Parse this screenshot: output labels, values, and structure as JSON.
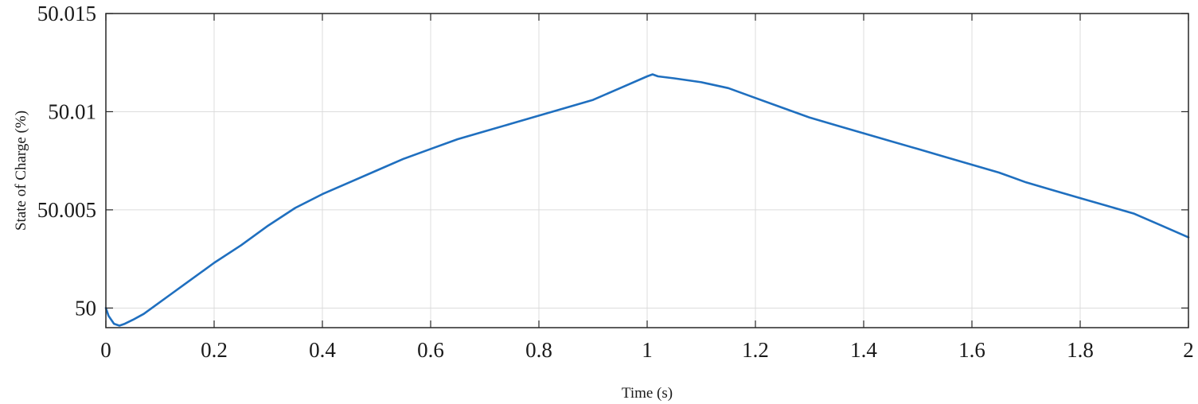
{
  "chart_data": {
    "type": "line",
    "title": "",
    "xlabel": "Time (s)",
    "ylabel": "State of Charge (%)",
    "xlim": [
      0,
      2
    ],
    "ylim": [
      49.999,
      50.015
    ],
    "grid": true,
    "x_ticks": [
      {
        "value": 0,
        "label": "0"
      },
      {
        "value": 0.2,
        "label": "0.2"
      },
      {
        "value": 0.4,
        "label": "0.4"
      },
      {
        "value": 0.6,
        "label": "0.6"
      },
      {
        "value": 0.8,
        "label": "0.8"
      },
      {
        "value": 1.0,
        "label": "1"
      },
      {
        "value": 1.2,
        "label": "1.2"
      },
      {
        "value": 1.4,
        "label": "1.4"
      },
      {
        "value": 1.6,
        "label": "1.6"
      },
      {
        "value": 1.8,
        "label": "1.8"
      },
      {
        "value": 2.0,
        "label": "2"
      }
    ],
    "y_ticks": [
      {
        "value": 50,
        "label": "50"
      },
      {
        "value": 50.005,
        "label": "50.005"
      },
      {
        "value": 50.01,
        "label": "50.01"
      },
      {
        "value": 50.015,
        "label": "50.015"
      }
    ],
    "line_color": "#1f6fbf",
    "series": [
      {
        "points": [
          [
            0.0,
            50.0
          ],
          [
            0.005,
            49.9996
          ],
          [
            0.015,
            49.9992
          ],
          [
            0.025,
            49.9991
          ],
          [
            0.035,
            49.9992
          ],
          [
            0.05,
            49.9994
          ],
          [
            0.07,
            49.9997
          ],
          [
            0.09,
            50.0001
          ],
          [
            0.12,
            50.0007
          ],
          [
            0.15,
            50.0013
          ],
          [
            0.18,
            50.0019
          ],
          [
            0.2,
            50.0023
          ],
          [
            0.25,
            50.0032
          ],
          [
            0.3,
            50.0042
          ],
          [
            0.35,
            50.0051
          ],
          [
            0.4,
            50.0058
          ],
          [
            0.45,
            50.0064
          ],
          [
            0.5,
            50.007
          ],
          [
            0.55,
            50.0076
          ],
          [
            0.6,
            50.0081
          ],
          [
            0.65,
            50.0086
          ],
          [
            0.7,
            50.009
          ],
          [
            0.75,
            50.0094
          ],
          [
            0.8,
            50.0098
          ],
          [
            0.85,
            50.0102
          ],
          [
            0.9,
            50.0106
          ],
          [
            0.95,
            50.0112
          ],
          [
            1.0,
            50.0118
          ],
          [
            1.01,
            50.0119
          ],
          [
            1.02,
            50.0118
          ],
          [
            1.05,
            50.0117
          ],
          [
            1.1,
            50.0115
          ],
          [
            1.15,
            50.0112
          ],
          [
            1.2,
            50.0107
          ],
          [
            1.25,
            50.0102
          ],
          [
            1.3,
            50.0097
          ],
          [
            1.35,
            50.0093
          ],
          [
            1.4,
            50.0089
          ],
          [
            1.45,
            50.0085
          ],
          [
            1.5,
            50.0081
          ],
          [
            1.55,
            50.0077
          ],
          [
            1.6,
            50.0073
          ],
          [
            1.65,
            50.0069
          ],
          [
            1.7,
            50.0064
          ],
          [
            1.75,
            50.006
          ],
          [
            1.8,
            50.0056
          ],
          [
            1.85,
            50.0052
          ],
          [
            1.9,
            50.0048
          ],
          [
            1.95,
            50.0042
          ],
          [
            2.0,
            50.0036
          ]
        ]
      }
    ]
  }
}
